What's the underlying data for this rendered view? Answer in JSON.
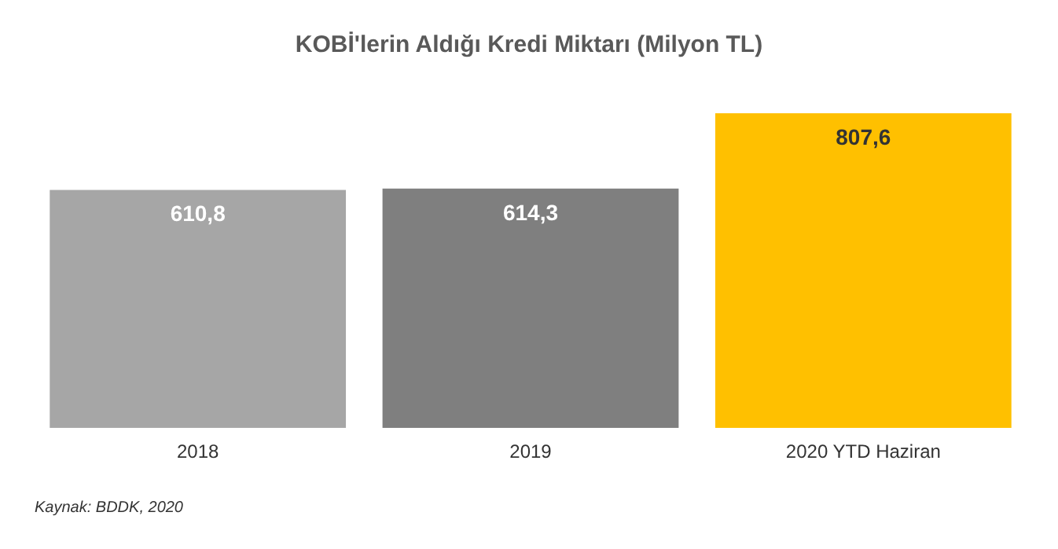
{
  "chart_data": {
    "type": "bar",
    "title": "KOBİ'lerin Aldığı Kredi Miktarı (Milyon TL)",
    "categories": [
      "2018",
      "2019",
      "2020 YTD Haziran"
    ],
    "values": [
      610.8,
      614.3,
      807.6
    ],
    "colors": [
      "#a6a6a6",
      "#7f7f7f",
      "#ffc000"
    ],
    "value_labels": [
      "610,8",
      "614,3",
      "807,6"
    ],
    "annotations": [
      "Kaynak: BDDK, 2020"
    ]
  }
}
